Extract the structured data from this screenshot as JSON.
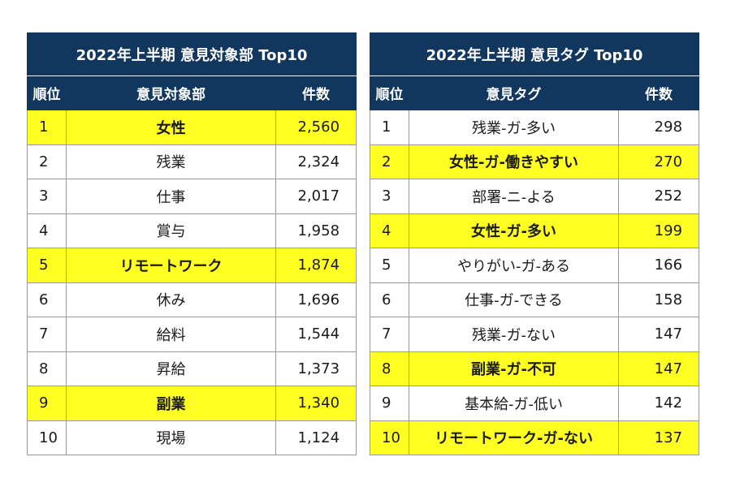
{
  "left_table": {
    "title": "2022年上半期 意見対象部 Top10",
    "headers": {
      "rank": "順位",
      "name": "意見対象部",
      "count": "件数"
    },
    "rows": [
      {
        "rank": "1",
        "name": "女性",
        "count": "2,560",
        "highlight": true
      },
      {
        "rank": "2",
        "name": "残業",
        "count": "2,324",
        "highlight": false
      },
      {
        "rank": "3",
        "name": "仕事",
        "count": "2,017",
        "highlight": false
      },
      {
        "rank": "4",
        "name": "賞与",
        "count": "1,958",
        "highlight": false
      },
      {
        "rank": "5",
        "name": "リモートワーク",
        "count": "1,874",
        "highlight": true
      },
      {
        "rank": "6",
        "name": "休み",
        "count": "1,696",
        "highlight": false
      },
      {
        "rank": "7",
        "name": "給料",
        "count": "1,544",
        "highlight": false
      },
      {
        "rank": "8",
        "name": "昇給",
        "count": "1,373",
        "highlight": false
      },
      {
        "rank": "9",
        "name": "副業",
        "count": "1,340",
        "highlight": true
      },
      {
        "rank": "10",
        "name": "現場",
        "count": "1,124",
        "highlight": false
      }
    ]
  },
  "right_table": {
    "title": "2022年上半期 意見タグ Top10",
    "headers": {
      "rank": "順位",
      "name": "意見タグ",
      "count": "件数"
    },
    "rows": [
      {
        "rank": "1",
        "name": "残業-ガ-多い",
        "count": "298",
        "highlight": false
      },
      {
        "rank": "2",
        "name": "女性-ガ-働きやすい",
        "count": "270",
        "highlight": true
      },
      {
        "rank": "3",
        "name": "部署-ニ-よる",
        "count": "252",
        "highlight": false
      },
      {
        "rank": "4",
        "name": "女性-ガ-多い",
        "count": "199",
        "highlight": true
      },
      {
        "rank": "5",
        "name": "やりがい-ガ-ある",
        "count": "166",
        "highlight": false
      },
      {
        "rank": "6",
        "name": "仕事-ガ-できる",
        "count": "158",
        "highlight": false
      },
      {
        "rank": "7",
        "name": "残業-ガ-ない",
        "count": "147",
        "highlight": false
      },
      {
        "rank": "8",
        "name": "副業-ガ-不可",
        "count": "147",
        "highlight": true
      },
      {
        "rank": "9",
        "name": "基本給-ガ-低い",
        "count": "142",
        "highlight": false
      },
      {
        "rank": "10",
        "name": "リモートワーク-ガ-ない",
        "count": "137",
        "highlight": true
      }
    ]
  },
  "colors": {
    "header_bg": "#12375f",
    "highlight": "#ffff22"
  }
}
